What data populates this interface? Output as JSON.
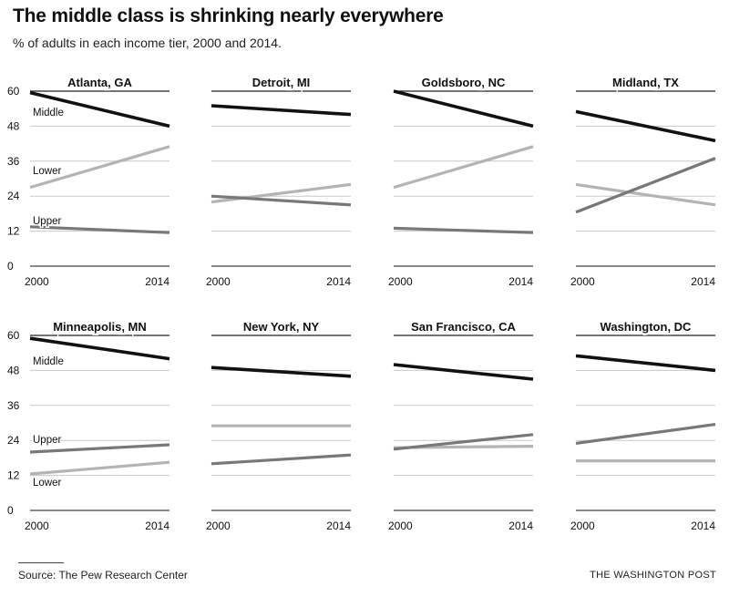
{
  "header": {
    "title": "The middle class is shrinking nearly everywhere",
    "subtitle": "% of adults in each income tier, 2000 and 2014."
  },
  "footer": {
    "source": "Source: The Pew Research Center",
    "credit": "THE WASHINGTON POST"
  },
  "colors": {
    "middle": "#111111",
    "lower": "#b4b4b4",
    "upper": "#787878",
    "grid": "#c8c8c8"
  },
  "chart_data": [
    {
      "type": "line",
      "title": "Atlanta, GA",
      "x": [
        "2000",
        "2014"
      ],
      "ylim": [
        0,
        60
      ],
      "yticks": [
        0,
        12,
        24,
        36,
        48,
        60
      ],
      "series": [
        {
          "name": "Middle",
          "values": [
            59.5,
            48
          ]
        },
        {
          "name": "Lower",
          "values": [
            27,
            41
          ]
        },
        {
          "name": "Upper",
          "values": [
            13.5,
            11.5
          ]
        }
      ]
    },
    {
      "type": "line",
      "title": "Detroit, MI",
      "x": [
        "2000",
        "2014"
      ],
      "ylim": [
        0,
        60
      ],
      "yticks": [
        0,
        12,
        24,
        36,
        48,
        60
      ],
      "series": [
        {
          "name": "Middle",
          "values": [
            55,
            52
          ]
        },
        {
          "name": "Lower",
          "values": [
            22,
            28
          ]
        },
        {
          "name": "Upper",
          "values": [
            24,
            21
          ]
        }
      ]
    },
    {
      "type": "line",
      "title": "Goldsboro, NC",
      "x": [
        "2000",
        "2014"
      ],
      "ylim": [
        0,
        60
      ],
      "yticks": [
        0,
        12,
        24,
        36,
        48,
        60
      ],
      "series": [
        {
          "name": "Middle",
          "values": [
            60,
            48
          ]
        },
        {
          "name": "Lower",
          "values": [
            27,
            41
          ]
        },
        {
          "name": "Upper",
          "values": [
            13,
            11.5
          ]
        }
      ]
    },
    {
      "type": "line",
      "title": "Midland, TX",
      "x": [
        "2000",
        "2014"
      ],
      "ylim": [
        0,
        60
      ],
      "yticks": [
        0,
        12,
        24,
        36,
        48,
        60
      ],
      "series": [
        {
          "name": "Middle",
          "values": [
            53,
            43
          ]
        },
        {
          "name": "Lower",
          "values": [
            28,
            21
          ]
        },
        {
          "name": "Upper",
          "values": [
            18.5,
            37
          ]
        }
      ]
    },
    {
      "type": "line",
      "title": "Minneapolis, MN",
      "x": [
        "2000",
        "2014"
      ],
      "ylim": [
        0,
        60
      ],
      "yticks": [
        0,
        12,
        24,
        36,
        48,
        60
      ],
      "series": [
        {
          "name": "Middle",
          "values": [
            59,
            52
          ]
        },
        {
          "name": "Upper",
          "values": [
            20,
            22.5
          ]
        },
        {
          "name": "Lower",
          "values": [
            12.5,
            16.5
          ]
        }
      ]
    },
    {
      "type": "line",
      "title": "New York, NY",
      "x": [
        "2000",
        "2014"
      ],
      "ylim": [
        0,
        60
      ],
      "yticks": [
        0,
        12,
        24,
        36,
        48,
        60
      ],
      "series": [
        {
          "name": "Middle",
          "values": [
            49,
            46
          ]
        },
        {
          "name": "Lower",
          "values": [
            29,
            29
          ]
        },
        {
          "name": "Upper",
          "values": [
            16,
            19
          ]
        }
      ]
    },
    {
      "type": "line",
      "title": "San Francisco, CA",
      "x": [
        "2000",
        "2014"
      ],
      "ylim": [
        0,
        60
      ],
      "yticks": [
        0,
        12,
        24,
        36,
        48,
        60
      ],
      "series": [
        {
          "name": "Middle",
          "values": [
            50,
            45
          ]
        },
        {
          "name": "Lower",
          "values": [
            21.5,
            22
          ]
        },
        {
          "name": "Upper",
          "values": [
            21,
            26
          ]
        }
      ]
    },
    {
      "type": "line",
      "title": "Washington, DC",
      "x": [
        "2000",
        "2014"
      ],
      "ylim": [
        0,
        60
      ],
      "yticks": [
        0,
        12,
        24,
        36,
        48,
        60
      ],
      "series": [
        {
          "name": "Middle",
          "values": [
            53,
            48
          ]
        },
        {
          "name": "Lower",
          "values": [
            17,
            17
          ]
        },
        {
          "name": "Upper",
          "values": [
            23,
            29.5
          ]
        }
      ]
    }
  ]
}
